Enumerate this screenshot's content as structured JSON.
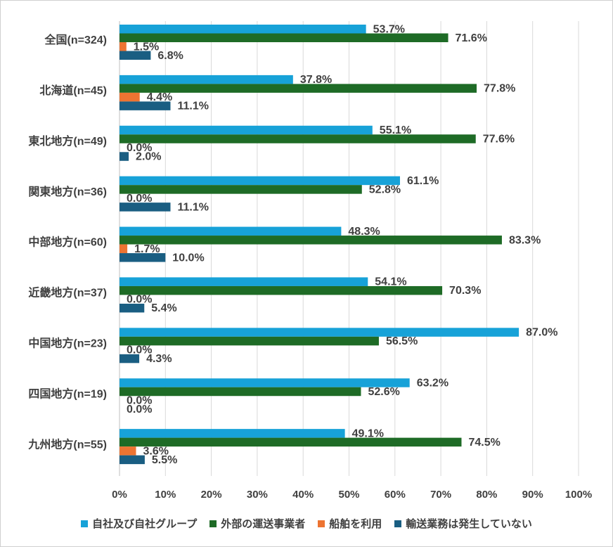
{
  "chart_data": {
    "type": "bar",
    "orientation": "horizontal",
    "categories": [
      "全国(n=324)",
      "北海道(n=45)",
      "東北地方(n=49)",
      "関東地方(n=36)",
      "中部地方(n=60)",
      "近畿地方(n=37)",
      "中国地方(n=23)",
      "四国地方(n=19)",
      "九州地方(n=55)"
    ],
    "series": [
      {
        "name": "自社及び自社グループ",
        "color": "#17a2d8",
        "values": [
          53.7,
          37.8,
          55.1,
          61.1,
          48.3,
          54.1,
          87.0,
          63.2,
          49.1
        ]
      },
      {
        "name": "外部の運送事業者",
        "color": "#1e6b26",
        "values": [
          71.6,
          77.8,
          77.6,
          52.8,
          83.3,
          70.3,
          56.5,
          52.6,
          74.5
        ]
      },
      {
        "name": "船舶を利用",
        "color": "#ed7432",
        "values": [
          1.5,
          4.4,
          0.0,
          0.0,
          1.7,
          0.0,
          0.0,
          0.0,
          3.6
        ]
      },
      {
        "name": "輸送業務は発生していない",
        "color": "#1a5e82",
        "values": [
          6.8,
          11.1,
          2.0,
          11.1,
          10.0,
          5.4,
          4.3,
          0.0,
          5.5
        ]
      }
    ],
    "xlim": [
      0,
      100
    ],
    "xticks": [
      "0%",
      "10%",
      "20%",
      "30%",
      "40%",
      "50%",
      "60%",
      "70%",
      "80%",
      "90%",
      "100%"
    ],
    "value_suffix": "%",
    "grid": "vertical",
    "legend_position": "bottom"
  }
}
